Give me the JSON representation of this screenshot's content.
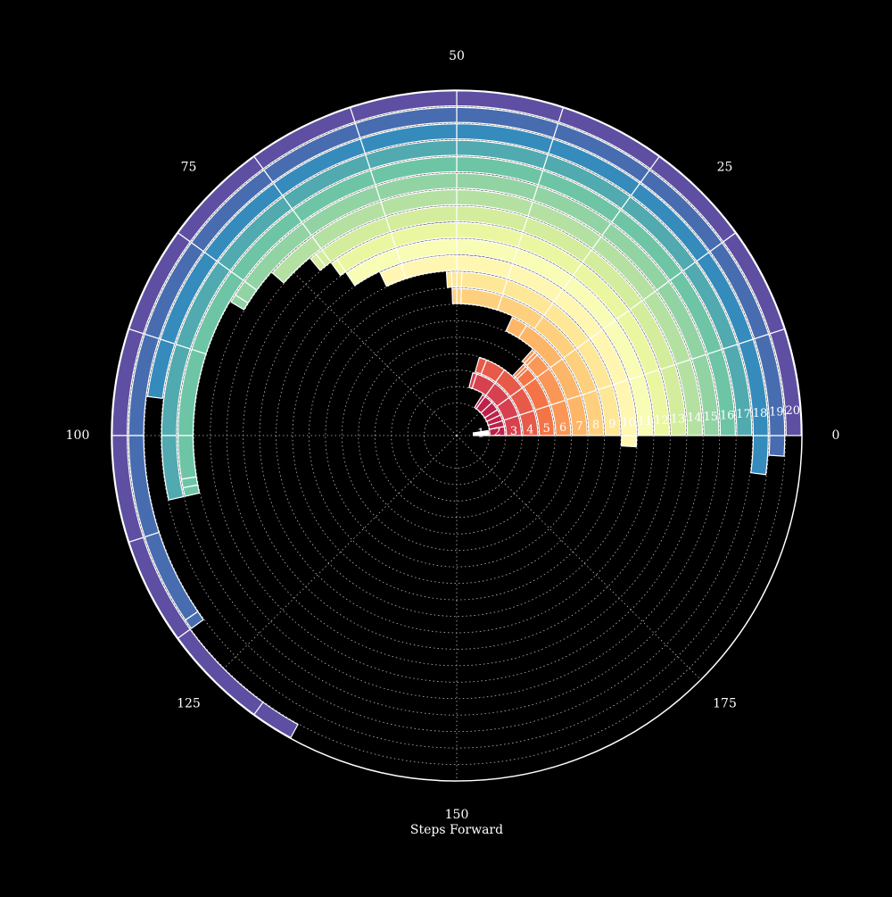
{
  "chart_data": {
    "type": "polar-bar",
    "xlabel": "Steps Forward",
    "angle_axis": {
      "min": 0,
      "max": 200,
      "direction": "counterclockwise",
      "tick_labels": [
        "0",
        "25",
        "50",
        "75",
        "100",
        "125",
        "150",
        "175"
      ],
      "tick_values": [
        0,
        25,
        50,
        75,
        100,
        125,
        150,
        175
      ]
    },
    "grid": true,
    "colormap": "Spectral",
    "rings": [
      {
        "label": "1",
        "segments": [
          [
            0,
            1
          ],
          [
            1,
            2
          ],
          [
            2,
            3
          ],
          [
            3,
            4
          ],
          [
            4,
            5
          ]
        ]
      },
      {
        "label": "2",
        "segments": [
          [
            0,
            6
          ],
          [
            6,
            10
          ],
          [
            10,
            14
          ],
          [
            14,
            18
          ],
          [
            18,
            24
          ],
          [
            24,
            30
          ],
          [
            30,
            32
          ]
        ]
      },
      {
        "label": "3",
        "segments": [
          [
            0,
            10
          ],
          [
            10,
            20
          ],
          [
            20,
            30
          ],
          [
            30,
            40
          ],
          [
            40,
            42
          ]
        ]
      },
      {
        "label": "4",
        "segments": [
          [
            0,
            10
          ],
          [
            10,
            20
          ],
          [
            20,
            30
          ],
          [
            30,
            38
          ],
          [
            38,
            41
          ]
        ]
      },
      {
        "label": "5",
        "segments": [
          [
            0,
            10
          ],
          [
            10,
            20
          ],
          [
            20,
            24
          ],
          [
            24,
            25
          ],
          [
            25,
            26
          ]
        ]
      },
      {
        "label": "6",
        "segments": [
          [
            0,
            10
          ],
          [
            10,
            20
          ],
          [
            20,
            25
          ],
          [
            25,
            26
          ],
          [
            26,
            27
          ]
        ]
      },
      {
        "label": "7",
        "segments": [
          [
            0,
            10
          ],
          [
            10,
            20
          ],
          [
            20,
            32
          ],
          [
            32,
            36
          ]
        ]
      },
      {
        "label": "8",
        "segments": [
          [
            0,
            10
          ],
          [
            10,
            20
          ],
          [
            20,
            30
          ],
          [
            30,
            40
          ],
          [
            40,
            49
          ],
          [
            49,
            50
          ],
          [
            50,
            51
          ]
        ]
      },
      {
        "label": "9",
        "segments": [
          [
            0,
            10
          ],
          [
            10,
            20
          ],
          [
            20,
            30
          ],
          [
            30,
            40
          ],
          [
            40,
            49
          ],
          [
            49,
            50
          ],
          [
            50,
            51
          ],
          [
            51,
            52
          ]
        ]
      },
      {
        "label": "10",
        "segments": [
          [
            198,
            200
          ],
          [
            0,
            10
          ],
          [
            10,
            20
          ],
          [
            20,
            30
          ],
          [
            30,
            40
          ],
          [
            40,
            50
          ],
          [
            50,
            60
          ],
          [
            60,
            64
          ]
        ]
      },
      {
        "label": "11",
        "segments": [
          [
            0,
            10
          ],
          [
            10,
            20
          ],
          [
            20,
            30
          ],
          [
            30,
            40
          ],
          [
            40,
            50
          ],
          [
            50,
            60
          ],
          [
            60,
            69
          ]
        ]
      },
      {
        "label": "12",
        "segments": [
          [
            0,
            10
          ],
          [
            10,
            20
          ],
          [
            20,
            30
          ],
          [
            30,
            40
          ],
          [
            40,
            50
          ],
          [
            50,
            60
          ],
          [
            60,
            69
          ],
          [
            69,
            70
          ]
        ]
      },
      {
        "label": "13",
        "segments": [
          [
            0,
            10
          ],
          [
            10,
            20
          ],
          [
            20,
            30
          ],
          [
            30,
            40
          ],
          [
            40,
            50
          ],
          [
            50,
            60
          ],
          [
            60,
            70
          ],
          [
            70,
            71
          ],
          [
            71,
            72
          ]
        ]
      },
      {
        "label": "14",
        "segments": [
          [
            0,
            10
          ],
          [
            10,
            20
          ],
          [
            20,
            30
          ],
          [
            30,
            40
          ],
          [
            40,
            50
          ],
          [
            50,
            60
          ],
          [
            60,
            70
          ],
          [
            70,
            77
          ]
        ]
      },
      {
        "label": "15",
        "segments": [
          [
            0,
            10
          ],
          [
            10,
            20
          ],
          [
            20,
            30
          ],
          [
            30,
            40
          ],
          [
            40,
            50
          ],
          [
            50,
            60
          ],
          [
            60,
            70
          ],
          [
            70,
            80
          ],
          [
            80,
            82
          ],
          [
            82,
            83
          ]
        ]
      },
      {
        "label": "16",
        "segments": [
          [
            0,
            10
          ],
          [
            10,
            20
          ],
          [
            20,
            30
          ],
          [
            30,
            40
          ],
          [
            40,
            50
          ],
          [
            50,
            60
          ],
          [
            60,
            70
          ],
          [
            70,
            80
          ],
          [
            80,
            90
          ],
          [
            90,
            100
          ],
          [
            100,
            105
          ],
          [
            105,
            106
          ],
          [
            106,
            107
          ]
        ]
      },
      {
        "label": "17",
        "segments": [
          [
            0,
            10
          ],
          [
            10,
            20
          ],
          [
            20,
            30
          ],
          [
            30,
            40
          ],
          [
            40,
            50
          ],
          [
            50,
            60
          ],
          [
            60,
            70
          ],
          [
            70,
            80
          ],
          [
            80,
            90
          ],
          [
            90,
            100
          ],
          [
            100,
            107
          ]
        ]
      },
      {
        "label": "18",
        "segments": [
          [
            196,
            200
          ],
          [
            0,
            10
          ],
          [
            10,
            20
          ],
          [
            20,
            30
          ],
          [
            30,
            40
          ],
          [
            40,
            50
          ],
          [
            50,
            60
          ],
          [
            60,
            70
          ],
          [
            70,
            80
          ],
          [
            80,
            90
          ],
          [
            90,
            96
          ]
        ]
      },
      {
        "label": "19",
        "segments": [
          [
            198,
            200
          ],
          [
            0,
            10
          ],
          [
            10,
            20
          ],
          [
            20,
            30
          ],
          [
            30,
            40
          ],
          [
            40,
            50
          ],
          [
            50,
            60
          ],
          [
            60,
            70
          ],
          [
            70,
            80
          ],
          [
            80,
            90
          ],
          [
            90,
            100
          ],
          [
            100,
            110
          ],
          [
            110,
            119
          ],
          [
            119,
            120
          ]
        ]
      },
      {
        "label": "20",
        "segments": [
          [
            0,
            10
          ],
          [
            10,
            20
          ],
          [
            20,
            30
          ],
          [
            30,
            40
          ],
          [
            40,
            50
          ],
          [
            50,
            60
          ],
          [
            60,
            70
          ],
          [
            70,
            80
          ],
          [
            80,
            90
          ],
          [
            90,
            100
          ],
          [
            100,
            110
          ],
          [
            110,
            120
          ],
          [
            120,
            130
          ],
          [
            130,
            134
          ]
        ]
      }
    ]
  }
}
